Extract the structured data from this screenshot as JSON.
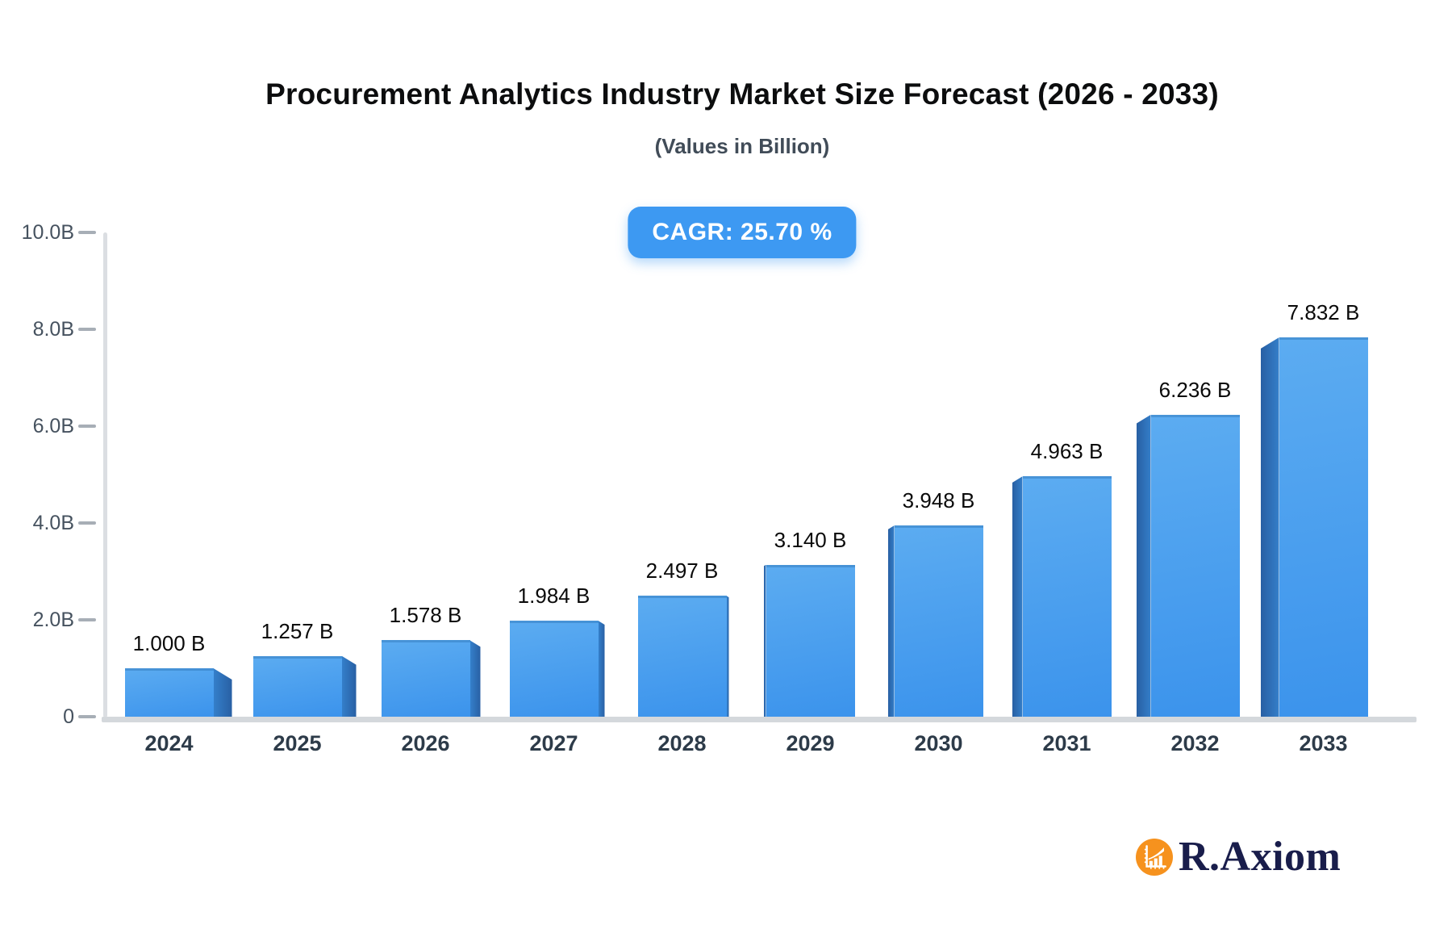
{
  "header": {
    "title": "Procurement Analytics Industry Market Size Forecast (2026 - 2033)",
    "subtitle": "(Values in Billion)"
  },
  "badge": {
    "label": "CAGR: 25.70 %"
  },
  "chart_data": {
    "type": "bar",
    "title": "Procurement Analytics Industry Market Size Forecast (2026 - 2033)",
    "subtitle": "(Values in Billion)",
    "categories": [
      "2024",
      "2025",
      "2026",
      "2027",
      "2028",
      "2029",
      "2030",
      "2031",
      "2032",
      "2033"
    ],
    "values": [
      1.0,
      1.257,
      1.578,
      1.984,
      2.497,
      3.14,
      3.948,
      4.963,
      6.236,
      7.832
    ],
    "value_labels": [
      "1.000 B",
      "1.257 B",
      "1.578 B",
      "1.984 B",
      "2.497 B",
      "3.140 B",
      "3.948 B",
      "4.963 B",
      "6.236 B",
      "7.832 B"
    ],
    "cagr_percent": 25.7,
    "xlabel": "",
    "ylabel": "",
    "ylim": [
      0,
      10
    ],
    "yticks": [
      {
        "value": 0,
        "label": "0"
      },
      {
        "value": 2,
        "label": "2.0B"
      },
      {
        "value": 4,
        "label": "4.0B"
      },
      {
        "value": 6,
        "label": "6.0B"
      },
      {
        "value": 8,
        "label": "8.0B"
      },
      {
        "value": 10,
        "label": "10.0B"
      }
    ],
    "grid": false,
    "legend": false,
    "bar_style": "3d-box",
    "colors": {
      "bar_face_top": "#5cacf1",
      "bar_face_bottom": "#3b93ec",
      "bar_side": "#2c72bc",
      "badge_background": "#3d99f2",
      "badge_text": "#ffffff",
      "axis_line": "#dbdee2",
      "tick_label": "#46525f",
      "category_label": "#2d3b49",
      "value_label": "#0a0a0a"
    }
  },
  "branding": {
    "logo_text": "R.Axiom",
    "logo_icon": "growth-chart-icon",
    "logo_circle_color": "#f6921e",
    "logo_text_color": "#191d4b"
  }
}
